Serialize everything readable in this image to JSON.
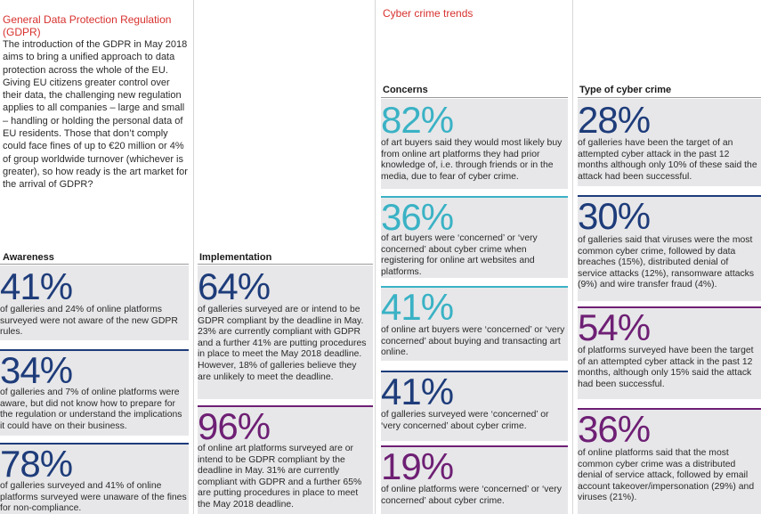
{
  "intro": {
    "title": "General Data Protection Regulation (GDPR)",
    "body": "The introduction of the GDPR in May 2018 aims to bring a unified approach to data protection across the whole of the EU. Giving EU citizens greater control over their data, the challenging new regulation applies to all companies – large and small – handling or holding the personal data of EU residents. Those that don’t comply could face fines of up to €20 million or 4% of group worldwide turnover (whichever is greater), so how ready is the art market for the arrival of GDPR?"
  },
  "awareness": {
    "heading": "Awareness",
    "stats": [
      {
        "pct": "41%",
        "text": "of galleries and 24% of online platforms surveyed were not aware of the new GDPR rules."
      },
      {
        "pct": "34%",
        "text": "of galleries and 7% of online platforms were aware, but did not know how to prepare for the regulation or understand the implications it could have on their business."
      },
      {
        "pct": "78%",
        "text": "of galleries surveyed and 41% of online platforms surveyed were unaware of the fines for non-compliance."
      }
    ]
  },
  "implementation": {
    "heading": "Implementation",
    "stats": [
      {
        "pct": "64%",
        "text": "of galleries surveyed are or intend to be GDPR compliant by the deadline in May. 23% are currently compliant with GDPR and a further 41% are putting procedures in place to meet the May 2018 deadline. However, 18% of galleries believe they are unlikely to meet the deadline."
      },
      {
        "pct": "96%",
        "text": "of online art platforms surveyed are or intend to be GDPR compliant by the deadline in May. 31% are currently compliant with GDPR and a further 65% are putting procedures in place to meet the May 2018 deadline."
      }
    ]
  },
  "trends": {
    "title": "Cyber crime trends"
  },
  "concerns": {
    "heading": "Concerns",
    "stats": [
      {
        "pct": "82%",
        "text": "of art buyers said they would most likely buy from online art platforms they had prior knowledge of, i.e. through friends or in the media, due to fear of cyber crime."
      },
      {
        "pct": "36%",
        "text": "of art buyers were ‘concerned’ or ‘very concerned’ about cyber crime when registering for online art websites and platforms."
      },
      {
        "pct": "41%",
        "text": "of online art buyers were ‘concerned’ or ‘very concerned’ about buying and transacting art online."
      },
      {
        "pct": "41%",
        "text": "of galleries surveyed were ‘concerned’ or ‘very concerned’ about cyber crime."
      },
      {
        "pct": "19%",
        "text": "of online platforms were ‘concerned’ or ‘very concerned’ about cyber crime."
      }
    ]
  },
  "types": {
    "heading": "Type of cyber crime",
    "stats": [
      {
        "pct": "28%",
        "text": "of galleries have been the target of an attempted cyber attack in the past 12 months although only 10% of these said the attack had been successful."
      },
      {
        "pct": "30%",
        "text": "of galleries said that viruses were the most common cyber crime, followed by data breaches (15%), distributed denial of service attacks (12%), ransomware attacks (9%) and wire transfer fraud (4%)."
      },
      {
        "pct": "54%",
        "text": "of platforms surveyed have been the target of an attempted cyber attack in the past 12 months, although only 15% said the attack had been successful."
      },
      {
        "pct": "36%",
        "text": "of online platforms said that the most common cyber crime was a distributed denial of service attack, followed by email account takeover/impersonation (29%) and viruses (21%)."
      }
    ]
  },
  "colors": {
    "red": "#d7312e",
    "blue": "#1e3c7a",
    "teal": "#3ab2c5",
    "purple": "#6e1f74",
    "card_bg": "#e7e7e9"
  }
}
